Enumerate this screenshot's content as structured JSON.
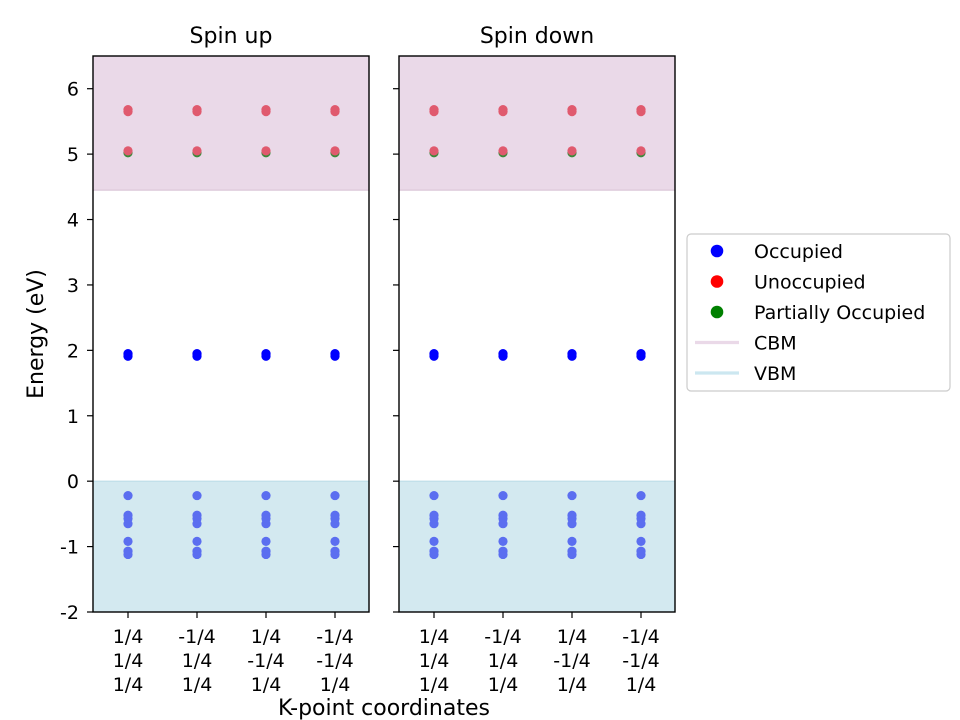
{
  "chart_data": {
    "type": "scatter",
    "xlabel": "K-point coordinates",
    "ylabel": "Energy (eV)",
    "ylim": [
      -2,
      6.5
    ],
    "yticks": [
      -2,
      -1,
      0,
      1,
      2,
      3,
      4,
      5,
      6
    ],
    "ytick_labels": [
      "-2",
      "-1",
      "0",
      "1",
      "2",
      "3",
      "4",
      "5",
      "6"
    ],
    "cbm": 4.45,
    "vbm": 0,
    "colors": {
      "occupied": "#0000ff",
      "occupied_in_band": "#5b6ef0",
      "unoccupied": "#e05a6e",
      "partially_occupied": "#3a8a3a",
      "cbm_band": "#ead9e8",
      "vbm_band": "#d3e9f0",
      "legend_unoccupied": "#ff0000",
      "legend_partial": "#008000",
      "legend_cbm_line": "#ead9e8",
      "legend_vbm_line": "#cce7f0"
    },
    "kpoints": [
      [
        "1/4",
        "1/4",
        "1/4"
      ],
      [
        "-1/4",
        "1/4",
        "1/4"
      ],
      [
        "1/4",
        "-1/4",
        "1/4"
      ],
      [
        "-1/4",
        "-1/4",
        "1/4"
      ]
    ],
    "panels": [
      {
        "title": "Spin up",
        "occupied": [
          1.91,
          1.93,
          1.95,
          -0.22,
          -0.52,
          -0.57,
          -0.65,
          -0.92,
          -1.07,
          -1.12
        ],
        "partially_occupied": [
          5.02
        ],
        "unoccupied": [
          5.05,
          5.65,
          5.68
        ]
      },
      {
        "title": "Spin down",
        "occupied": [
          1.91,
          1.93,
          1.95,
          -0.22,
          -0.52,
          -0.57,
          -0.65,
          -0.92,
          -1.07,
          -1.12
        ],
        "partially_occupied": [
          5.02
        ],
        "unoccupied": [
          5.05,
          5.65,
          5.68
        ]
      }
    ],
    "legend": {
      "position": "center-right",
      "entries": [
        {
          "label": "Occupied",
          "marker": "dot",
          "color_key": "occupied"
        },
        {
          "label": "Unoccupied",
          "marker": "dot",
          "color_key": "legend_unoccupied"
        },
        {
          "label": "Partially Occupied",
          "marker": "dot",
          "color_key": "legend_partial"
        },
        {
          "label": "CBM",
          "marker": "line",
          "color_key": "legend_cbm_line"
        },
        {
          "label": "VBM",
          "marker": "line",
          "color_key": "legend_vbm_line"
        }
      ]
    }
  }
}
